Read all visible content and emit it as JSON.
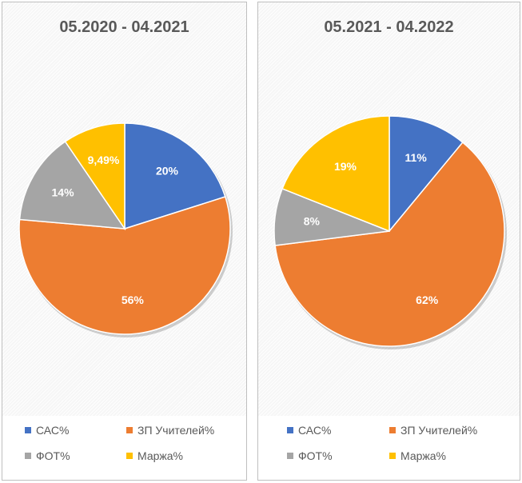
{
  "chart_data": [
    {
      "type": "pie",
      "title": "05.2020 - 04.2021",
      "slices": [
        {
          "label": "САС%",
          "value": 20,
          "display": "20%",
          "color": "#4472C4"
        },
        {
          "label": "ЗП Учителей%",
          "value": 56,
          "display": "56%",
          "color": "#ED7D31"
        },
        {
          "label": "ФОТ%",
          "value": 14,
          "display": "14%",
          "color": "#A5A5A5"
        },
        {
          "label": "Маржа%",
          "value": 9.49,
          "display": "9,49%",
          "color": "#FFC000"
        }
      ],
      "legend": "bottom"
    },
    {
      "type": "pie",
      "title": "05.2021 - 04.2022",
      "slices": [
        {
          "label": "САС%",
          "value": 11,
          "display": "11%",
          "color": "#4472C4"
        },
        {
          "label": "ЗП Учителей%",
          "value": 62,
          "display": "62%",
          "color": "#ED7D31"
        },
        {
          "label": "ФОТ%",
          "value": 8,
          "display": "8%",
          "color": "#A5A5A5"
        },
        {
          "label": "Маржа%",
          "value": 19,
          "display": "19%",
          "color": "#FFC000"
        }
      ],
      "legend": "bottom"
    }
  ]
}
